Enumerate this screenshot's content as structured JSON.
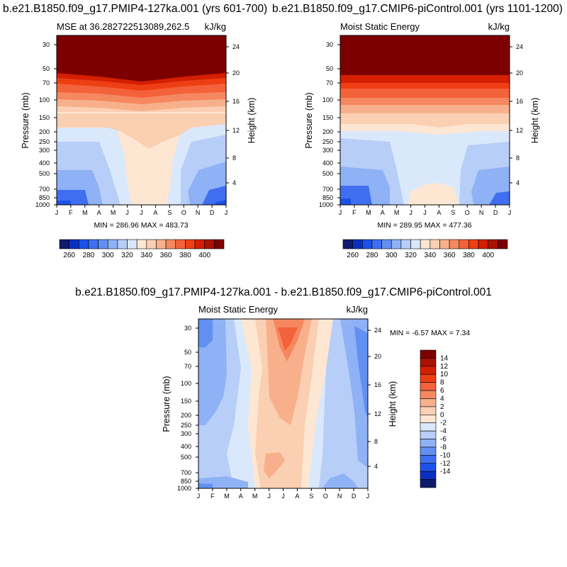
{
  "figure_main_title": "b.e21.B1850.f09_g17.PMIP4-127ka.001 - b.e21.B1850.f09_g17.CMIP6-piControl.001",
  "chart_data": [
    {
      "type": "heatmap",
      "title": "b.e21.B1850.f09_g17.PMIP4-127ka.001 (yrs 601-700)",
      "subtitle_left": "MSE at 36.282722513089,262.5",
      "subtitle_right": "kJ/kg",
      "xlabel": "",
      "ylabel": "Pressure (mb)",
      "ylabel_right": "Height (km)",
      "x_ticks": [
        "J",
        "F",
        "M",
        "A",
        "M",
        "J",
        "J",
        "A",
        "S",
        "O",
        "N",
        "D",
        "J"
      ],
      "y_ticks": [
        "30",
        "50",
        "70",
        "100",
        "150",
        "200",
        "250",
        "300",
        "400",
        "500",
        "700",
        "850",
        "1000"
      ],
      "y_ticks_right": [
        "24",
        "20",
        "16",
        "12",
        "8",
        "4"
      ],
      "stats": "MIN = 286.96 MAX = 483.73",
      "colorbar_labels": [
        "260",
        "280",
        "300",
        "320",
        "340",
        "360",
        "380",
        "400"
      ],
      "colorbar_colors": [
        "#0e1b6c",
        "#0b2fc0",
        "#1d52e8",
        "#3f6ff0",
        "#6290f2",
        "#8fb1f5",
        "#b7cef8",
        "#dae8fb",
        "#fde7d3",
        "#fbcfb2",
        "#f8b08c",
        "#f58860",
        "#f3623a",
        "#ee3f14",
        "#d41f00",
        "#a81300",
        "#7d0000"
      ],
      "legend_position": "bottom",
      "grid": false
    },
    {
      "type": "heatmap",
      "title": "b.e21.B1850.f09_g17.CMIP6-piControl.001 (yrs 1101-1200)",
      "subtitle_left": "Moist Static Energy",
      "subtitle_right": "kJ/kg",
      "xlabel": "",
      "ylabel": "Pressure (mb)",
      "ylabel_right": "Height (km)",
      "x_ticks": [
        "J",
        "F",
        "M",
        "A",
        "M",
        "J",
        "J",
        "A",
        "S",
        "O",
        "N",
        "D",
        "J"
      ],
      "y_ticks": [
        "30",
        "50",
        "70",
        "100",
        "150",
        "200",
        "250",
        "300",
        "400",
        "500",
        "700",
        "850",
        "1000"
      ],
      "y_ticks_right": [
        "24",
        "20",
        "16",
        "12",
        "8",
        "4"
      ],
      "stats": "MIN = 289.95 MAX = 477.36",
      "colorbar_labels": [
        "260",
        "280",
        "300",
        "320",
        "340",
        "360",
        "380",
        "400"
      ],
      "colorbar_colors": [
        "#0e1b6c",
        "#0b2fc0",
        "#1d52e8",
        "#3f6ff0",
        "#6290f2",
        "#8fb1f5",
        "#b7cef8",
        "#dae8fb",
        "#fde7d3",
        "#fbcfb2",
        "#f8b08c",
        "#f58860",
        "#f3623a",
        "#ee3f14",
        "#d41f00",
        "#a81300",
        "#7d0000"
      ],
      "legend_position": "bottom",
      "grid": false
    },
    {
      "type": "heatmap",
      "title": "",
      "subtitle_left": "Moist Static Energy",
      "subtitle_right": "kJ/kg",
      "xlabel": "",
      "ylabel": "Pressure (mb)",
      "ylabel_right": "Height (km)",
      "x_ticks": [
        "J",
        "F",
        "M",
        "A",
        "M",
        "J",
        "J",
        "A",
        "S",
        "O",
        "N",
        "D",
        "J"
      ],
      "y_ticks": [
        "30",
        "50",
        "70",
        "100",
        "150",
        "200",
        "250",
        "300",
        "400",
        "500",
        "700",
        "850",
        "1000"
      ],
      "y_ticks_right": [
        "24",
        "20",
        "16",
        "12",
        "8",
        "4"
      ],
      "stats": "MIN = -6.57 MAX =   7.34",
      "colorbar_labels": [
        "14",
        "12",
        "10",
        "8",
        "6",
        "4",
        "2",
        "0",
        "-2",
        "-4",
        "-6",
        "-8",
        "-10",
        "-12",
        "-14"
      ],
      "colorbar_colors": [
        "#7d0000",
        "#a81300",
        "#d41f00",
        "#ee3f14",
        "#f3623a",
        "#f58860",
        "#f8b08c",
        "#fbcfb2",
        "#fde7d3",
        "#dae8fb",
        "#b7cef8",
        "#8fb1f5",
        "#6290f2",
        "#3f6ff0",
        "#1d52e8",
        "#0b2fc0",
        "#0e1b6c"
      ],
      "legend_position": "right",
      "grid": false
    }
  ]
}
